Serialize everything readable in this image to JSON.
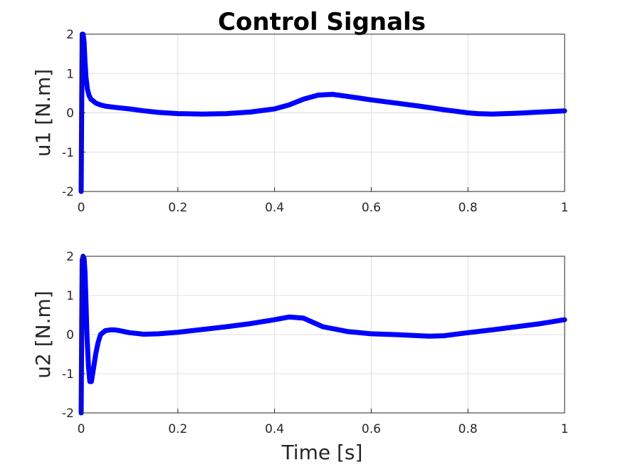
{
  "title": "Control Signals",
  "chart_data": [
    {
      "type": "line",
      "ylabel": "u1 [N.m]",
      "xlabel": "",
      "xlim": [
        0,
        1
      ],
      "ylim": [
        -2,
        2
      ],
      "xticks": [
        "0",
        "0.2",
        "0.4",
        "0.6",
        "0.8",
        "1"
      ],
      "yticks": [
        "-2",
        "-1",
        "0",
        "1",
        "2"
      ],
      "grid": true,
      "color": "#0000ff",
      "series": [
        {
          "x": [
            0,
            0.002,
            0.004,
            0.006,
            0.008,
            0.01,
            0.013,
            0.016,
            0.02,
            0.025,
            0.03,
            0.04,
            0.05,
            0.07,
            0.1,
            0.13,
            0.16,
            0.2,
            0.25,
            0.3,
            0.35,
            0.4,
            0.43,
            0.46,
            0.49,
            0.52,
            0.55,
            0.6,
            0.65,
            0.7,
            0.75,
            0.8,
            0.82,
            0.85,
            0.9,
            0.95,
            1.0
          ],
          "y": [
            -2,
            2,
            2,
            1.8,
            1.3,
            0.9,
            0.6,
            0.45,
            0.35,
            0.3,
            0.25,
            0.2,
            0.17,
            0.14,
            0.1,
            0.05,
            0.01,
            -0.02,
            -0.03,
            -0.02,
            0.02,
            0.1,
            0.2,
            0.35,
            0.45,
            0.47,
            0.42,
            0.33,
            0.25,
            0.17,
            0.08,
            0.0,
            -0.02,
            -0.03,
            -0.01,
            0.02,
            0.05
          ]
        }
      ]
    },
    {
      "type": "line",
      "ylabel": "u2 [N.m]",
      "xlabel": "Time [s]",
      "xlim": [
        0,
        1
      ],
      "ylim": [
        -2,
        2
      ],
      "xticks": [
        "0",
        "0.2",
        "0.4",
        "0.6",
        "0.8",
        "1"
      ],
      "yticks": [
        "-2",
        "-1",
        "0",
        "1",
        "2"
      ],
      "grid": true,
      "color": "#0000ff",
      "series": [
        {
          "x": [
            0,
            0.002,
            0.004,
            0.006,
            0.008,
            0.01,
            0.012,
            0.015,
            0.018,
            0.021,
            0.025,
            0.03,
            0.035,
            0.04,
            0.05,
            0.06,
            0.07,
            0.08,
            0.1,
            0.13,
            0.16,
            0.2,
            0.25,
            0.3,
            0.35,
            0.4,
            0.43,
            0.46,
            0.5,
            0.55,
            0.6,
            0.65,
            0.7,
            0.72,
            0.75,
            0.8,
            0.85,
            0.9,
            0.95,
            1.0
          ],
          "y": [
            -2,
            1.9,
            2,
            1.95,
            1.6,
            0.8,
            0,
            -0.8,
            -1.2,
            -1.2,
            -0.9,
            -0.5,
            -0.2,
            0.0,
            0.1,
            0.12,
            0.12,
            0.1,
            0.05,
            0.01,
            0.02,
            0.06,
            0.13,
            0.2,
            0.28,
            0.38,
            0.45,
            0.42,
            0.2,
            0.08,
            0.02,
            0.0,
            -0.03,
            -0.04,
            -0.03,
            0.05,
            0.12,
            0.2,
            0.28,
            0.38
          ]
        }
      ]
    }
  ]
}
